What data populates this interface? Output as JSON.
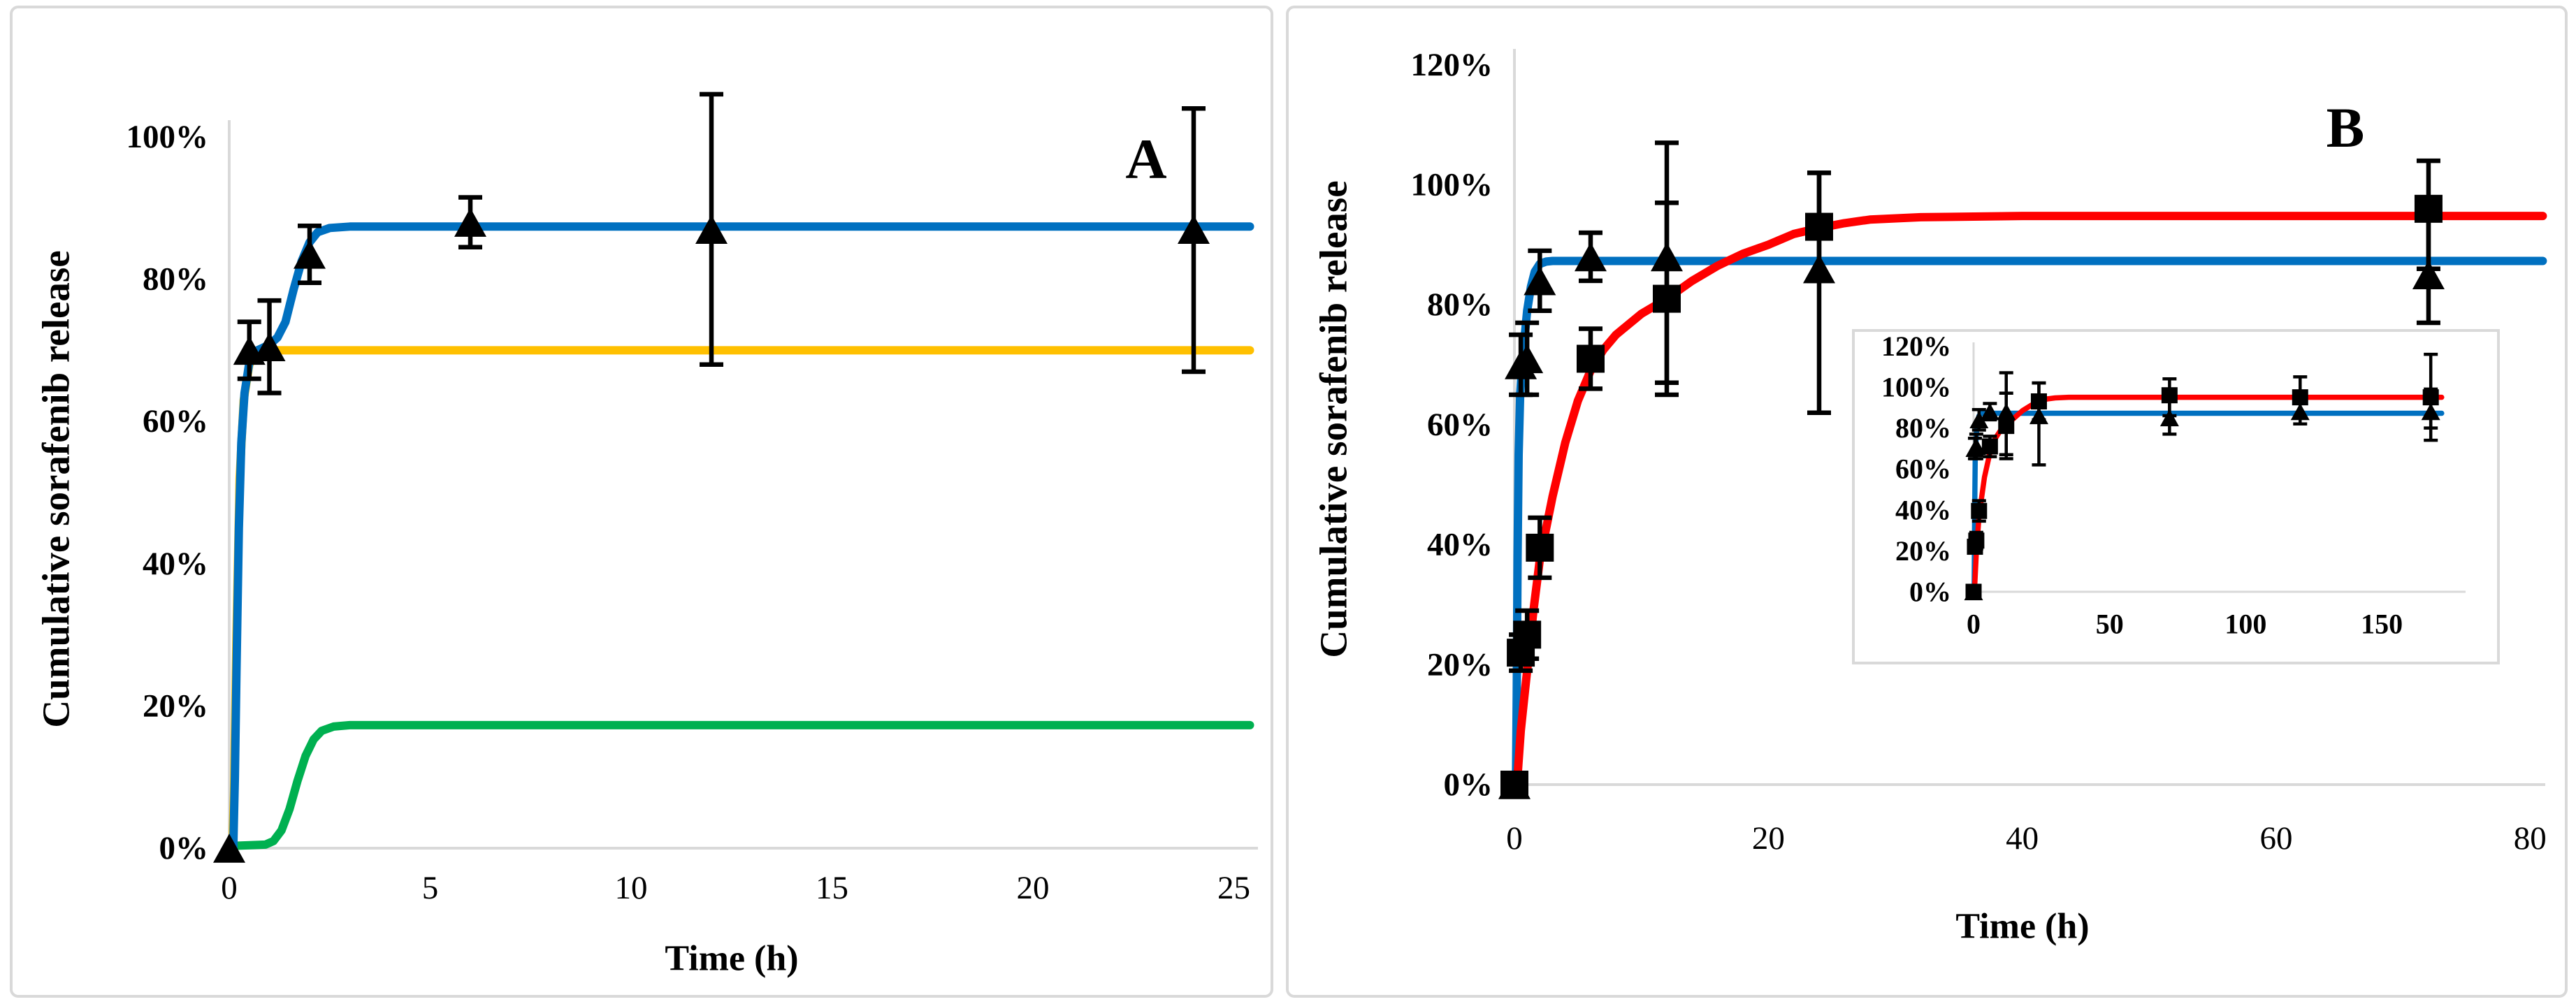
{
  "figure": {
    "description": "Two-panel cumulative sorafenib release plot with fitted curves, error bars and an inset",
    "colors": {
      "fast_fit_blue": "#0070C0",
      "slow_fit_red": "#FF0000",
      "level_fit_yellow": "#FFC000",
      "low_fit_green": "#00B050",
      "marker_black": "#000000",
      "axis_gray": "#D9D9D9"
    }
  },
  "panels": [
    {
      "label": "A",
      "y_axis_title": "Cumulative sorafenib release",
      "x_axis_title": "Time (h)"
    },
    {
      "label": "B",
      "y_axis_title": "Cumulative sorafenib release",
      "x_axis_title": "Time (h)"
    }
  ],
  "chart_data": [
    {
      "id": "panel-A-chart",
      "geom": "A",
      "type": "line",
      "panel_label": "A",
      "xlabel": "Time (h)",
      "ylabel": "Cumulative sorafenib release",
      "xlim": [
        0,
        25.4
      ],
      "ylim": [
        0,
        100
      ],
      "grid": false,
      "legend": "none",
      "x_ticks": [
        0,
        5,
        10,
        15,
        20,
        25
      ],
      "x_tick_labels": [
        "0",
        "5",
        "10",
        "15",
        "20",
        "25"
      ],
      "y_ticks": [
        0,
        20,
        40,
        60,
        80,
        100
      ],
      "y_tick_labels": [
        "0%",
        "20%",
        "40%",
        "60%",
        "80%",
        "100%"
      ],
      "series": [
        {
          "name": "fit-plateau-70pct",
          "kind": "curve",
          "color": "#FFC000",
          "points": [
            [
              0.08,
              0
            ],
            [
              0.12,
              8
            ],
            [
              0.18,
              30
            ],
            [
              0.26,
              52
            ],
            [
              0.36,
              63
            ],
            [
              0.5,
              68
            ],
            [
              0.7,
              70
            ],
            [
              25.4,
              70
            ]
          ]
        },
        {
          "name": "fit-plateau-17pct",
          "kind": "curve",
          "color": "#00B050",
          "points": [
            [
              0,
              0.3
            ],
            [
              0.9,
              0.5
            ],
            [
              1.1,
              1
            ],
            [
              1.3,
              2.5
            ],
            [
              1.5,
              5.5
            ],
            [
              1.7,
              9.5
            ],
            [
              1.9,
              13
            ],
            [
              2.1,
              15.3
            ],
            [
              2.3,
              16.5
            ],
            [
              2.6,
              17.1
            ],
            [
              3.0,
              17.3
            ],
            [
              25.4,
              17.3
            ]
          ]
        },
        {
          "name": "fit-plateau-87pct",
          "kind": "curve",
          "color": "#0070C0",
          "points": [
            [
              0.1,
              0
            ],
            [
              0.14,
              10
            ],
            [
              0.18,
              25
            ],
            [
              0.24,
              45
            ],
            [
              0.3,
              57
            ],
            [
              0.38,
              64
            ],
            [
              0.5,
              68.3
            ],
            [
              0.7,
              70
            ],
            [
              1.0,
              70.8
            ],
            [
              1.2,
              71.8
            ],
            [
              1.4,
              74
            ],
            [
              1.6,
              78.5
            ],
            [
              1.8,
              82.5
            ],
            [
              2.0,
              85.2
            ],
            [
              2.2,
              86.6
            ],
            [
              2.5,
              87.2
            ],
            [
              3.0,
              87.4
            ],
            [
              25.4,
              87.4
            ]
          ]
        },
        {
          "name": "observed-release-triangles",
          "kind": "scatter",
          "marker": "triangle",
          "color": "#000000",
          "points": [
            [
              0,
              0,
              0,
              0
            ],
            [
              0.5,
              70,
              4,
              4
            ],
            [
              1,
              70.5,
              6.5,
              6.5
            ],
            [
              2,
              83.5,
              4,
              4
            ],
            [
              6,
              88,
              3.5,
              3.5
            ],
            [
              12,
              87,
              19,
              19
            ],
            [
              24,
              87,
              17,
              20
            ]
          ]
        }
      ]
    },
    {
      "id": "panel-B-chart",
      "geom": "B",
      "type": "line",
      "panel_label": "B",
      "xlabel": "Time (h)",
      "ylabel": "Cumulative sorafenib release",
      "xlim": [
        0,
        81
      ],
      "ylim": [
        0,
        120
      ],
      "grid": false,
      "legend": "none",
      "x_ticks": [
        0,
        20,
        40,
        60,
        80
      ],
      "x_tick_labels": [
        "0",
        "20",
        "40",
        "60",
        "80"
      ],
      "y_ticks": [
        0,
        20,
        40,
        60,
        80,
        100,
        120
      ],
      "y_tick_labels": [
        "0%",
        "20%",
        "40%",
        "60%",
        "80%",
        "100%",
        "120%"
      ],
      "series": [
        {
          "name": "fit-fast-87pct",
          "kind": "curve",
          "color": "#0070C0",
          "points": [
            [
              0.12,
              0
            ],
            [
              0.18,
              15
            ],
            [
              0.25,
              38
            ],
            [
              0.33,
              55
            ],
            [
              0.45,
              65
            ],
            [
              0.6,
              70
            ],
            [
              0.8,
              74.5
            ],
            [
              1.0,
              79
            ],
            [
              1.3,
              83
            ],
            [
              1.6,
              85.5
            ],
            [
              2.0,
              86.8
            ],
            [
              2.5,
              87.2
            ],
            [
              3.0,
              87.3
            ],
            [
              81,
              87.3
            ]
          ]
        },
        {
          "name": "fit-slow-95pct",
          "kind": "curve",
          "color": "#FF0000",
          "points": [
            [
              0.2,
              0
            ],
            [
              0.5,
              9
            ],
            [
              0.75,
              14
            ],
            [
              1,
              19
            ],
            [
              1.5,
              29
            ],
            [
              2,
              37.5
            ],
            [
              3,
              48
            ],
            [
              4,
              57
            ],
            [
              5,
              64
            ],
            [
              6,
              69
            ],
            [
              7,
              72.5
            ],
            [
              8,
              75
            ],
            [
              10,
              78.5
            ],
            [
              12,
              81
            ],
            [
              14,
              84
            ],
            [
              16,
              86.5
            ],
            [
              18,
              88.5
            ],
            [
              20,
              90
            ],
            [
              22,
              91.8
            ],
            [
              24,
              92.8
            ],
            [
              26,
              93.6
            ],
            [
              28,
              94.2
            ],
            [
              32,
              94.6
            ],
            [
              40,
              94.8
            ],
            [
              81,
              94.8
            ]
          ]
        },
        {
          "name": "observed-fast-triangles",
          "kind": "scatter",
          "marker": "triangle",
          "color": "#000000",
          "points": [
            [
              0,
              0,
              0,
              0
            ],
            [
              0.5,
              70,
              5,
              5
            ],
            [
              1,
              71,
              6,
              6
            ],
            [
              2,
              84,
              5,
              5
            ],
            [
              6,
              88,
              4,
              4
            ],
            [
              12,
              88,
              19,
              21
            ],
            [
              24,
              86,
              16,
              24
            ],
            [
              72,
              85,
              10,
              8
            ]
          ]
        },
        {
          "name": "observed-slow-squares",
          "kind": "scatter",
          "marker": "square",
          "color": "#000000",
          "points": [
            [
              0,
              0,
              0,
              0
            ],
            [
              0.5,
              22,
              3,
              3
            ],
            [
              1,
              25,
              4,
              4
            ],
            [
              2,
              39.5,
              5,
              5
            ],
            [
              6,
              71,
              5,
              5
            ],
            [
              12,
              81,
              16,
              16
            ],
            [
              24,
              93,
              9,
              9
            ],
            [
              72,
              96,
              8,
              10
            ]
          ]
        }
      ]
    },
    {
      "id": "panel-B-inset-chart",
      "geom": "I",
      "type": "line",
      "panel_label": "B-inset",
      "xlabel": "",
      "ylabel": "",
      "xlim": [
        0,
        175
      ],
      "ylim": [
        0,
        120
      ],
      "grid": false,
      "legend": "none",
      "framed": true,
      "x_ticks": [
        0,
        50,
        100,
        150
      ],
      "x_tick_labels": [
        "0",
        "50",
        "100",
        "150"
      ],
      "y_ticks": [
        0,
        20,
        40,
        60,
        80,
        100,
        120
      ],
      "y_tick_labels": [
        "0%",
        "20%",
        "40%",
        "60%",
        "80%",
        "100%",
        "120%"
      ],
      "series": [
        {
          "name": "fit-fast-87pct",
          "kind": "curve",
          "color": "#0070C0",
          "points": [
            [
              0.2,
              0
            ],
            [
              0.4,
              40
            ],
            [
              0.6,
              64
            ],
            [
              1,
              77
            ],
            [
              1.5,
              83.5
            ],
            [
              2,
              86
            ],
            [
              3,
              87.2
            ],
            [
              172,
              87.2
            ]
          ]
        },
        {
          "name": "fit-slow-95pct",
          "kind": "curve",
          "color": "#FF0000",
          "points": [
            [
              0.3,
              0
            ],
            [
              1,
              19
            ],
            [
              2,
              37
            ],
            [
              4,
              56
            ],
            [
              6,
              68
            ],
            [
              8,
              75
            ],
            [
              10,
              79
            ],
            [
              12,
              81.5
            ],
            [
              15,
              85
            ],
            [
              18,
              88.5
            ],
            [
              21,
              91
            ],
            [
              24,
              93
            ],
            [
              27,
              94.2
            ],
            [
              30,
              94.7
            ],
            [
              35,
              95
            ],
            [
              172,
              95
            ]
          ]
        },
        {
          "name": "observed-fast-triangles",
          "kind": "scatter",
          "marker": "triangle",
          "color": "#000000",
          "points": [
            [
              0,
              0,
              0,
              0
            ],
            [
              0.5,
              70,
              5,
              5
            ],
            [
              1,
              71,
              6,
              6
            ],
            [
              2,
              84,
              5,
              5
            ],
            [
              6,
              88,
              4,
              4
            ],
            [
              12,
              88,
              19,
              21
            ],
            [
              24,
              86,
              16,
              24
            ],
            [
              72,
              85,
              10,
              8
            ],
            [
              120,
              88,
              6,
              6
            ],
            [
              168,
              88,
              11,
              14
            ]
          ]
        },
        {
          "name": "observed-slow-squares",
          "kind": "scatter",
          "marker": "square",
          "color": "#000000",
          "points": [
            [
              0,
              0,
              0,
              0
            ],
            [
              0.5,
              22,
              3,
              3
            ],
            [
              1,
              25,
              4,
              4
            ],
            [
              2,
              39.5,
              5,
              5
            ],
            [
              6,
              71,
              5,
              5
            ],
            [
              12,
              81,
              16,
              16
            ],
            [
              24,
              93,
              9,
              9
            ],
            [
              72,
              96,
              8,
              10
            ],
            [
              120,
              95,
              10,
              10
            ],
            [
              168,
              95,
              21,
              15
            ]
          ]
        }
      ]
    }
  ]
}
